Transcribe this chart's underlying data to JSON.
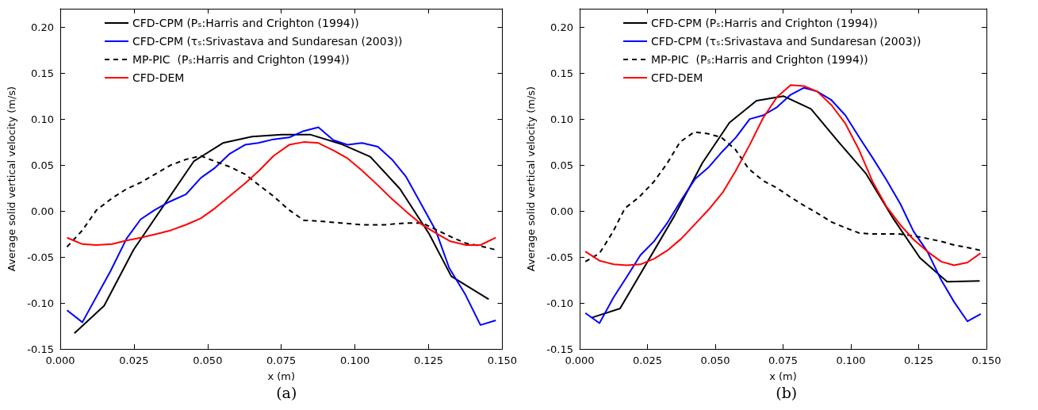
{
  "chart_data": [
    {
      "type": "line",
      "title": "(a)",
      "xlabel": "x (m)",
      "ylabel": "Average solid vertical velocity (m/s)",
      "xlim": [
        0,
        0.15
      ],
      "ylim": [
        -0.15,
        0.22
      ],
      "xticks": [
        {
          "value": 0,
          "label": "0.000"
        },
        {
          "value": 0.025,
          "label": "0.025"
        },
        {
          "value": 0.05,
          "label": "0.050"
        },
        {
          "value": 0.075,
          "label": "0.075"
        },
        {
          "value": 0.1,
          "label": "0.100"
        },
        {
          "value": 0.125,
          "label": "0.125"
        },
        {
          "value": 0.15,
          "label": "0.150"
        }
      ],
      "yticks": [
        {
          "value": -0.15,
          "label": "-0.15"
        },
        {
          "value": -0.1,
          "label": "-0.10"
        },
        {
          "value": -0.05,
          "label": "-0.05"
        },
        {
          "value": 0,
          "label": "0.00"
        },
        {
          "value": 0.05,
          "label": "0.05"
        },
        {
          "value": 0.1,
          "label": "0.10"
        },
        {
          "value": 0.15,
          "label": "0.15"
        },
        {
          "value": 0.2,
          "label": "0.20"
        }
      ],
      "grid": false,
      "legend": "top left",
      "marker": "none",
      "series": [
        {
          "name": "CFD-CPM (Pₛ:Harris and Crighton (1994))",
          "color": "#000000",
          "line_style": "solid",
          "x": [
            0.0048,
            0.0149,
            0.0249,
            0.0453,
            0.0552,
            0.0651,
            0.0751,
            0.085,
            0.0952,
            0.1052,
            0.1153,
            0.1252,
            0.1327,
            0.1454
          ],
          "values": [
            -0.133,
            -0.103,
            -0.042,
            0.054,
            0.074,
            0.081,
            0.083,
            0.083,
            0.073,
            0.059,
            0.024,
            -0.025,
            -0.071,
            -0.096
          ]
        },
        {
          "name": "CFD-CPM (τₛ:Srivastava and Sundaresan (2003))",
          "color": "#0000ff",
          "line_style": "solid",
          "x": [
            0.0023,
            0.0075,
            0.0171,
            0.0225,
            0.0273,
            0.032,
            0.037,
            0.0426,
            0.0477,
            0.0525,
            0.0574,
            0.0627,
            0.0672,
            0.0724,
            0.0777,
            0.0826,
            0.0876,
            0.0927,
            0.0976,
            0.1024,
            0.1078,
            0.1126,
            0.1174,
            0.1274,
            0.132,
            0.1375,
            0.1426,
            0.1478
          ],
          "values": [
            -0.108,
            -0.121,
            -0.065,
            -0.03,
            -0.009,
            0.001,
            0.01,
            0.018,
            0.036,
            0.047,
            0.062,
            0.072,
            0.074,
            0.078,
            0.08,
            0.087,
            0.091,
            0.077,
            0.072,
            0.074,
            0.07,
            0.056,
            0.037,
            -0.021,
            -0.062,
            -0.091,
            -0.124,
            -0.119
          ]
        },
        {
          "name": "MP-PIC  (Pₛ:Harris and Crighton (1994))",
          "color": "#000000",
          "line_style": "dashed",
          "x": [
            0.0023,
            0.0075,
            0.0123,
            0.0176,
            0.0225,
            0.0273,
            0.0322,
            0.0375,
            0.0426,
            0.0477,
            0.0525,
            0.0576,
            0.0627,
            0.0675,
            0.0724,
            0.0777,
            0.0826,
            0.0876,
            0.0952,
            0.1024,
            0.1101,
            0.1174,
            0.1228,
            0.128,
            0.1339,
            0.1377,
            0.1426,
            0.1475
          ],
          "values": [
            -0.039,
            -0.021,
            0.001,
            0.014,
            0.024,
            0.031,
            0.04,
            0.05,
            0.056,
            0.06,
            0.054,
            0.048,
            0.04,
            0.028,
            0.016,
            0.001,
            -0.01,
            -0.011,
            -0.013,
            -0.015,
            -0.015,
            -0.013,
            -0.013,
            -0.021,
            -0.03,
            -0.035,
            -0.038,
            -0.042
          ]
        },
        {
          "name": "CFD-DEM",
          "color": "#ff0000",
          "line_style": "solid",
          "x": [
            0.0023,
            0.0075,
            0.0123,
            0.0176,
            0.0225,
            0.0273,
            0.0327,
            0.0375,
            0.0426,
            0.0477,
            0.0525,
            0.0574,
            0.0627,
            0.0675,
            0.0724,
            0.0777,
            0.0826,
            0.0876,
            0.0927,
            0.0976,
            0.1024,
            0.1078,
            0.1126,
            0.1179,
            0.1228,
            0.128,
            0.1324,
            0.1377,
            0.1426,
            0.1478
          ],
          "values": [
            -0.029,
            -0.036,
            -0.037,
            -0.036,
            -0.032,
            -0.029,
            -0.025,
            -0.021,
            -0.015,
            -0.008,
            0.003,
            0.016,
            0.03,
            0.044,
            0.06,
            0.072,
            0.075,
            0.074,
            0.066,
            0.057,
            0.044,
            0.028,
            0.013,
            -0.002,
            -0.015,
            -0.025,
            -0.033,
            -0.037,
            -0.037,
            -0.029
          ]
        }
      ]
    },
    {
      "type": "line",
      "title": "(b)",
      "xlabel": "x (m)",
      "ylabel": "Average solid vertical velocity (m/s)",
      "xlim": [
        0,
        0.15
      ],
      "ylim": [
        -0.15,
        0.22
      ],
      "xticks": [
        {
          "value": 0,
          "label": "0.000"
        },
        {
          "value": 0.025,
          "label": "0.025"
        },
        {
          "value": 0.05,
          "label": "0.050"
        },
        {
          "value": 0.075,
          "label": "0.075"
        },
        {
          "value": 0.1,
          "label": "0.100"
        },
        {
          "value": 0.125,
          "label": "0.125"
        },
        {
          "value": 0.15,
          "label": "0.150"
        }
      ],
      "yticks": [
        {
          "value": -0.15,
          "label": "-0.15"
        },
        {
          "value": -0.1,
          "label": "-0.10"
        },
        {
          "value": -0.05,
          "label": "-0.05"
        },
        {
          "value": 0,
          "label": "0.00"
        },
        {
          "value": 0.05,
          "label": "0.05"
        },
        {
          "value": 0.1,
          "label": "0.10"
        },
        {
          "value": 0.15,
          "label": "0.15"
        },
        {
          "value": 0.2,
          "label": "0.20"
        }
      ],
      "grid": false,
      "legend": "top left",
      "marker": "none",
      "series": [
        {
          "name": "CFD-CPM (Pₛ:Harris and Crighton (1994))",
          "color": "#000000",
          "line_style": "solid",
          "x": [
            0.0044,
            0.0149,
            0.035,
            0.0452,
            0.0552,
            0.0652,
            0.0751,
            0.0853,
            0.0955,
            0.1055,
            0.1156,
            0.1255,
            0.1355,
            0.1475
          ],
          "values": [
            -0.116,
            -0.106,
            -0.005,
            0.052,
            0.096,
            0.12,
            0.125,
            0.111,
            0.075,
            0.041,
            -0.008,
            -0.051,
            -0.077,
            -0.076
          ]
        },
        {
          "name": "CFD-CPM (τₛ:Srivastava and Sundaresan (2003))",
          "color": "#0000ff",
          "line_style": "solid",
          "x": [
            0.0021,
            0.0073,
            0.0125,
            0.0173,
            0.0224,
            0.0274,
            0.0323,
            0.0375,
            0.0426,
            0.0477,
            0.0527,
            0.0576,
            0.0627,
            0.0676,
            0.0728,
            0.0776,
            0.0827,
            0.0876,
            0.0927,
            0.098,
            0.1031,
            0.108,
            0.1131,
            0.1182,
            0.1231,
            0.1282,
            0.1333,
            0.1381,
            0.143,
            0.1479
          ],
          "values": [
            -0.111,
            -0.122,
            -0.094,
            -0.072,
            -0.048,
            -0.033,
            -0.013,
            0.012,
            0.035,
            0.048,
            0.065,
            0.08,
            0.1,
            0.104,
            0.113,
            0.126,
            0.134,
            0.13,
            0.121,
            0.104,
            0.08,
            0.058,
            0.034,
            0.008,
            -0.022,
            -0.044,
            -0.075,
            -0.099,
            -0.12,
            -0.112
          ]
        },
        {
          "name": "MP-PIC  (Pₛ:Harris and Crighton (1994))",
          "color": "#000000",
          "line_style": "dashed",
          "x": [
            0.0021,
            0.0073,
            0.0122,
            0.0167,
            0.0219,
            0.0274,
            0.0323,
            0.037,
            0.0423,
            0.0475,
            0.0523,
            0.0574,
            0.0623,
            0.0676,
            0.0728,
            0.0778,
            0.0827,
            0.088,
            0.0929,
            0.0978,
            0.1031,
            0.108,
            0.1177,
            0.1231,
            0.1284,
            0.1333,
            0.1381,
            0.1435,
            0.148
          ],
          "values": [
            -0.055,
            -0.046,
            -0.023,
            0.003,
            0.015,
            0.032,
            0.052,
            0.075,
            0.086,
            0.084,
            0.08,
            0.067,
            0.046,
            0.033,
            0.025,
            0.015,
            0.006,
            -0.003,
            -0.012,
            -0.018,
            -0.024,
            -0.025,
            -0.025,
            -0.027,
            -0.03,
            -0.033,
            -0.037,
            -0.04,
            -0.043
          ]
        },
        {
          "name": "CFD-DEM",
          "color": "#ff0000",
          "line_style": "solid",
          "x": [
            0.0021,
            0.0073,
            0.0125,
            0.0173,
            0.0224,
            0.0274,
            0.0323,
            0.0375,
            0.0426,
            0.0477,
            0.0527,
            0.0576,
            0.0627,
            0.0676,
            0.0728,
            0.0778,
            0.0827,
            0.0876,
            0.0929,
            0.098,
            0.1031,
            0.108,
            0.1131,
            0.1182,
            0.1231,
            0.1282,
            0.1333,
            0.1381,
            0.143,
            0.1478
          ],
          "values": [
            -0.044,
            -0.054,
            -0.058,
            -0.059,
            -0.058,
            -0.052,
            -0.043,
            -0.03,
            -0.014,
            0.002,
            0.02,
            0.044,
            0.072,
            0.101,
            0.124,
            0.137,
            0.136,
            0.13,
            0.115,
            0.095,
            0.066,
            0.032,
            0.005,
            -0.015,
            -0.031,
            -0.044,
            -0.055,
            -0.059,
            -0.056,
            -0.046
          ]
        }
      ]
    }
  ]
}
